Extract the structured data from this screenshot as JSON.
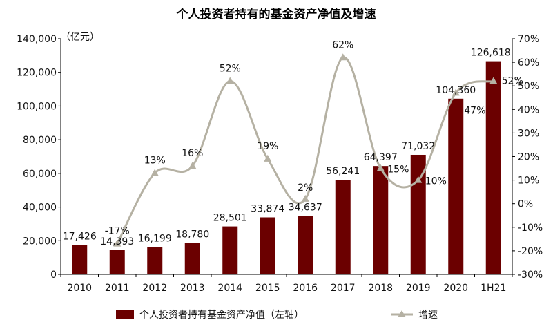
{
  "chart_data": {
    "type": "bar+line",
    "title": "个人投资者持有的基金资产净值及增速",
    "categories": [
      "2010",
      "2011",
      "2012",
      "2013",
      "2014",
      "2015",
      "2016",
      "2017",
      "2018",
      "2019",
      "2020",
      "1H21"
    ],
    "series": [
      {
        "name": "个人投资者持有基金资产净值（左轴）",
        "type": "bar",
        "axis": "left",
        "color": "#6b0000",
        "values": [
          17426,
          14393,
          16199,
          18780,
          28501,
          33874,
          34637,
          56241,
          64397,
          71032,
          104360,
          126618
        ],
        "labels": [
          "17,426",
          "14,393",
          "16,199",
          "18,780",
          "28,501",
          "33,874",
          "34,637",
          "56,241",
          "64,397",
          "71,032",
          "104,360",
          "126,618"
        ]
      },
      {
        "name": "增速",
        "type": "line",
        "axis": "right",
        "color": "#b5b1a3",
        "values": [
          null,
          -17,
          13,
          16,
          52,
          19,
          2,
          62,
          15,
          10,
          47,
          52
        ],
        "labels": [
          "",
          "-17%",
          "13%",
          "16%",
          "52%",
          "19%",
          "2%",
          "62%",
          "15%",
          "10%",
          "47%",
          "52%"
        ]
      }
    ],
    "left_axis": {
      "unit": "（亿元）",
      "ylim": [
        0,
        140000
      ],
      "ticks": [
        "0",
        "20,000",
        "40,000",
        "60,000",
        "80,000",
        "100,000",
        "120,000",
        "140,000"
      ]
    },
    "right_axis": {
      "ylim": [
        -30,
        70
      ],
      "ticks": [
        "-30%",
        "-20%",
        "-10%",
        "0%",
        "10%",
        "20%",
        "30%",
        "40%",
        "50%",
        "60%",
        "70%"
      ]
    },
    "grid": false,
    "legend_position": "bottom"
  }
}
